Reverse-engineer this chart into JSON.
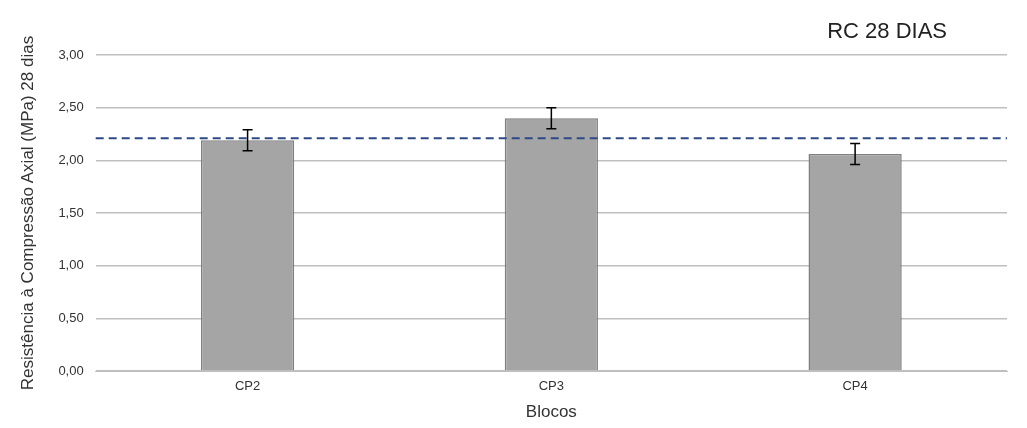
{
  "chart_data": {
    "type": "bar",
    "title": "RC 28 DIAS",
    "xlabel": "Blocos",
    "ylabel": "Resistência à Compressão Axial (MPa) 28 dias",
    "categories": [
      "CP2",
      "CP3",
      "CP4"
    ],
    "values": [
      2.19,
      2.4,
      2.06
    ],
    "errors": [
      0.1,
      0.1,
      0.1
    ],
    "color": "#a5a5a5",
    "ylim": [
      0,
      3
    ],
    "yticks": [
      {
        "value": 0,
        "label": "0,00"
      },
      {
        "value": 0.5,
        "label": "0,50"
      },
      {
        "value": 1,
        "label": "1,00"
      },
      {
        "value": 1.5,
        "label": "1,50"
      },
      {
        "value": 2,
        "label": "2,00"
      },
      {
        "value": 2.5,
        "label": "2,50"
      },
      {
        "value": 3,
        "label": "3,00"
      }
    ],
    "ref_lines": [
      {
        "axis": "y",
        "value": 2.21,
        "color": "#2e4a86",
        "line_style": "dashed"
      }
    ],
    "grid": "y",
    "legend": false
  }
}
